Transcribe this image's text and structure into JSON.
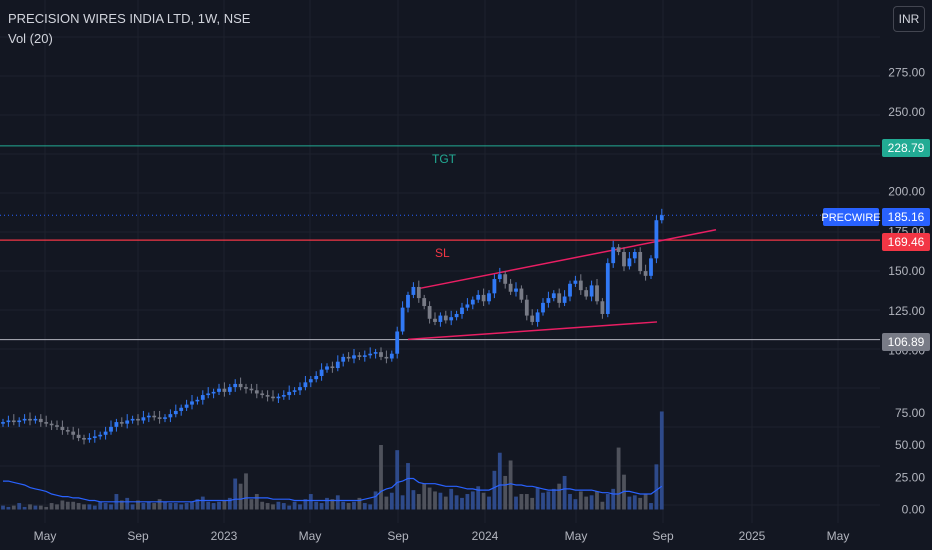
{
  "header": {
    "title": "PRECISION WIRES INDIA LTD, 1W, NSE",
    "indicator": "Vol (20)",
    "currency_button": "INR"
  },
  "colors": {
    "background": "#131722",
    "up": "#3179f5",
    "down": "#787b86",
    "volume_ma": "#2962ff",
    "tgt": "#22ab94",
    "sl": "#f23645",
    "channel": "#e91e63",
    "support": "#b2b5be",
    "price_tag": "#2962ff",
    "text": "#d1d4dc"
  },
  "chart_data": {
    "type": "candlestick",
    "symbol": "PRECWIRE",
    "timeframe": "1W",
    "price_axis_ticks": [
      "275.00",
      "250.00",
      "225.00",
      "200.00",
      "175.00",
      "150.00",
      "125.00",
      "100.00",
      "75.00",
      "50.00",
      "25.00",
      "0.00"
    ],
    "time_axis_labels": [
      "May",
      "Sep",
      "2023",
      "May",
      "Sep",
      "2024",
      "May",
      "Sep",
      "2025",
      "May"
    ],
    "last_price": 185.16,
    "levels": [
      {
        "label": "TGT",
        "value": 228.79
      },
      {
        "label": "SL",
        "value": 169.46
      },
      {
        "label": "",
        "value": 106.89
      }
    ],
    "symbol_tag": "PRECWIRE",
    "last_price_label": "185.16",
    "tgt_label": "228.79",
    "sl_label": "169.46",
    "support_label": "106.89",
    "tgt_text": "TGT",
    "sl_text": "SL",
    "closes": [
      55,
      56,
      55,
      56,
      57,
      56,
      57,
      55,
      54,
      53,
      52,
      50,
      49,
      47,
      45,
      44,
      45,
      46,
      47,
      49,
      52,
      55,
      54,
      56,
      57,
      56,
      58,
      59,
      58,
      57,
      58,
      60,
      62,
      64,
      66,
      68,
      69,
      72,
      73,
      74,
      76,
      74,
      77,
      79,
      77,
      76,
      75,
      73,
      72,
      71,
      70,
      71,
      72,
      74,
      75,
      77,
      80,
      82,
      84,
      88,
      90,
      89,
      93,
      96,
      95,
      97,
      96,
      97,
      98,
      99,
      96,
      95,
      98,
      112,
      127,
      135,
      140,
      133,
      128,
      120,
      118,
      122,
      119,
      121,
      123,
      127,
      129,
      132,
      135,
      131,
      136,
      145,
      148,
      142,
      137,
      139,
      132,
      122,
      118,
      124,
      130,
      133,
      136,
      130,
      134,
      142,
      144,
      138,
      134,
      141,
      131,
      123,
      155,
      165,
      162,
      153,
      158,
      162,
      150,
      147,
      158,
      182,
      185.16
    ],
    "volumes": [
      3,
      2,
      3,
      5,
      2,
      4,
      3,
      3,
      2,
      5,
      4,
      7,
      6,
      6,
      5,
      4,
      4,
      3,
      6,
      5,
      4,
      12,
      7,
      9,
      4,
      7,
      5,
      6,
      5,
      8,
      6,
      5,
      5,
      4,
      5,
      6,
      8,
      10,
      6,
      5,
      6,
      7,
      9,
      24,
      20,
      28,
      8,
      12,
      6,
      5,
      4,
      6,
      5,
      3,
      6,
      4,
      8,
      12,
      6,
      5,
      9,
      8,
      11,
      6,
      5,
      6,
      9,
      5,
      4,
      14,
      50,
      10,
      13,
      46,
      11,
      36,
      15,
      12,
      20,
      17,
      14,
      13,
      10,
      16,
      11,
      9,
      12,
      14,
      18,
      13,
      10,
      30,
      44,
      26,
      38,
      10,
      12,
      12,
      9,
      17,
      13,
      14,
      16,
      20,
      26,
      12,
      8,
      14,
      10,
      11,
      14,
      6,
      12,
      16,
      48,
      27,
      10,
      11,
      9,
      12,
      5,
      35,
      76
    ],
    "volume_ma": [
      22,
      22,
      21,
      20,
      19,
      17,
      16,
      15,
      14,
      12,
      11,
      10,
      10,
      9,
      9,
      8,
      7,
      7,
      6,
      6,
      6,
      6,
      6,
      6,
      6,
      6,
      6,
      6,
      6,
      6,
      6,
      6,
      6,
      6,
      6,
      6,
      7,
      7,
      7,
      7,
      7,
      7,
      7,
      8,
      8,
      9,
      9,
      9,
      9,
      9,
      8,
      8,
      8,
      8,
      7,
      7,
      7,
      7,
      7,
      7,
      7,
      7,
      7,
      7,
      7,
      7,
      7,
      8,
      9,
      10,
      14,
      16,
      17,
      21,
      22,
      24,
      24,
      21,
      20,
      20,
      20,
      19,
      18,
      18,
      18,
      17,
      16,
      16,
      15,
      15,
      15,
      17,
      19,
      19,
      20,
      19,
      19,
      18,
      18,
      17,
      16,
      15,
      15,
      15,
      16,
      16,
      15,
      15,
      15,
      15,
      14,
      13,
      13,
      12,
      12,
      14,
      14,
      13,
      12,
      12,
      12,
      15,
      18
    ]
  }
}
